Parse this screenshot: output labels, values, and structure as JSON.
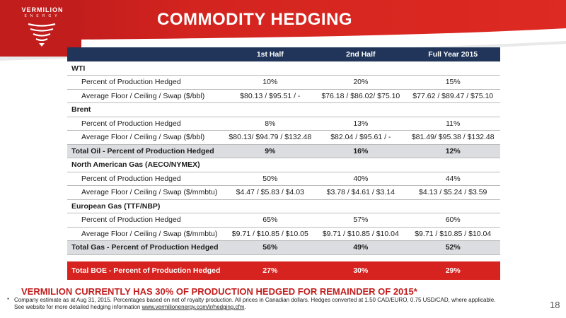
{
  "brand": {
    "name": "VERMILION",
    "sub": "ENERGY",
    "colors": {
      "red": "#d7231f",
      "navy": "#21355a"
    }
  },
  "slide": {
    "title": "COMMODITY HEDGING",
    "page_number": "18",
    "callout": "VERMILION CURRENTLY HAS 30% OF PRODUCTION HEDGED FOR REMAINDER OF 2015*"
  },
  "table": {
    "columns": [
      "",
      "1st Half",
      "2nd Half",
      "Full Year 2015"
    ],
    "rows": [
      {
        "type": "section",
        "label": "WTI",
        "values": [
          "",
          "",
          ""
        ]
      },
      {
        "type": "indent",
        "label": "Percent of Production Hedged",
        "values": [
          "10%",
          "20%",
          "15%"
        ]
      },
      {
        "type": "indent",
        "label": "Average Floor / Ceiling / Swap ($/bbl)",
        "values": [
          "$80.13 / $95.51 / -",
          "$76.18 / $86.02/ $75.10",
          "$77.62 / $89.47 / $75.10"
        ]
      },
      {
        "type": "section",
        "label": "Brent",
        "values": [
          "",
          "",
          ""
        ]
      },
      {
        "type": "indent",
        "label": "Percent of Production Hedged",
        "values": [
          "8%",
          "13%",
          "11%"
        ]
      },
      {
        "type": "indent",
        "label": "Average Floor / Ceiling / Swap ($/bbl)",
        "values": [
          "$80.13/ $94.79 / $132.48",
          "$82.04 / $95.61 / -",
          "$81.49/ $95.38 / $132.48"
        ]
      },
      {
        "type": "total",
        "label": "Total Oil - Percent of Production Hedged",
        "values": [
          "9%",
          "16%",
          "12%"
        ]
      },
      {
        "type": "section-plain",
        "label": "North American Gas (AECO/NYMEX)",
        "values": [
          "",
          "",
          ""
        ]
      },
      {
        "type": "indent",
        "label": "Percent of Production Hedged",
        "values": [
          "50%",
          "40%",
          "44%"
        ]
      },
      {
        "type": "indent",
        "label": "Average Floor / Ceiling / Swap ($/mmbtu)",
        "values": [
          "$4.47 / $5.83 / $4.03",
          "$3.78 / $4.61 / $3.14",
          "$4.13 / $5.24 / $3.59"
        ]
      },
      {
        "type": "section-plain",
        "label": "European Gas (TTF/NBP)",
        "values": [
          "",
          "",
          ""
        ]
      },
      {
        "type": "indent",
        "label": "Percent of Production Hedged",
        "values": [
          "65%",
          "57%",
          "60%"
        ]
      },
      {
        "type": "indent",
        "label": "Average Floor / Ceiling / Swap ($/mmbtu)",
        "values": [
          "$9.71 / $10.85 / $10.05",
          "$9.71 / $10.85 / $10.04",
          "$9.71 / $10.85 / $10.04"
        ]
      },
      {
        "type": "total",
        "label": "Total Gas - Percent of Production Hedged",
        "values": [
          "56%",
          "49%",
          "52%"
        ]
      }
    ],
    "grand_total": {
      "label": "Total BOE - Percent of Production Hedged",
      "values": [
        "27%",
        "30%",
        "29%"
      ]
    }
  },
  "footnote": {
    "star": "*",
    "line1": "Company estimate as at Aug 31, 2015. Percentages based on net of royalty production.  All prices in Canadian dollars. Hedges converted at 1.50 CAD/EURO, 0.75 USD/CAD, where applicable.",
    "line2_prefix": "See website for more detailed hedging information ",
    "link": "www.vermilionenergy.com/ir/hedging.cfm",
    "line2_suffix": "."
  }
}
